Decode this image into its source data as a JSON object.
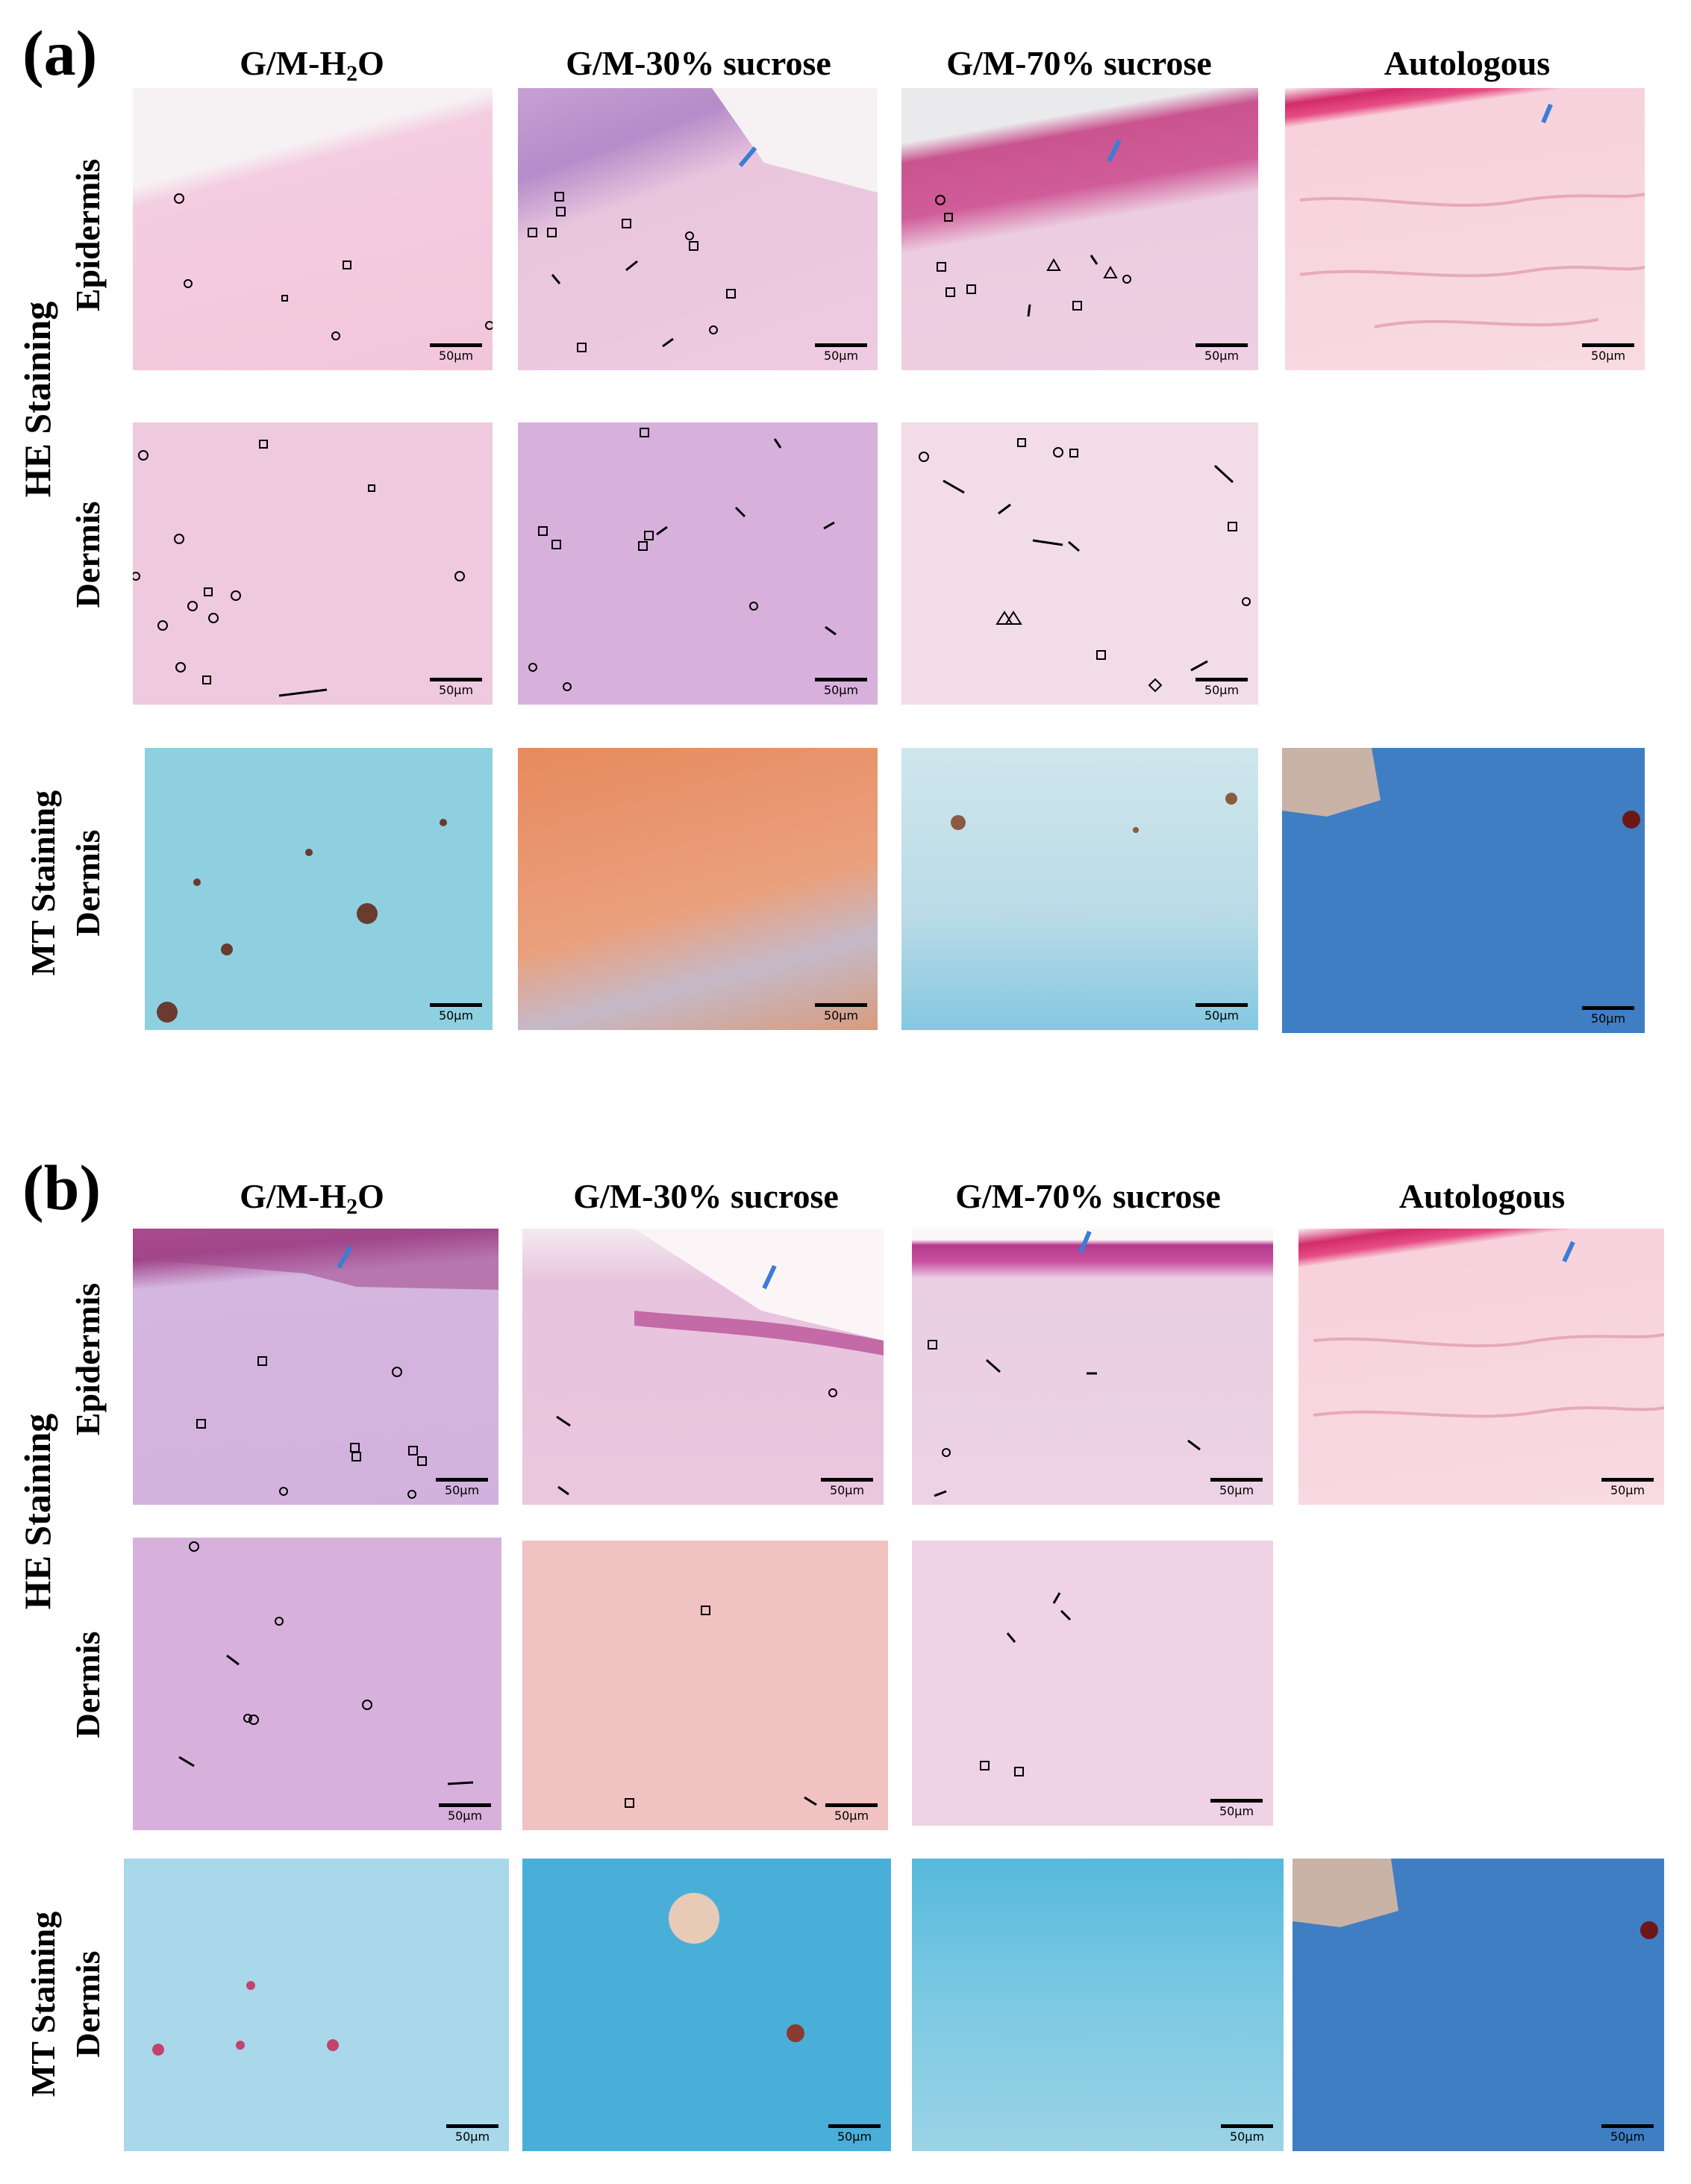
{
  "panels": [
    {
      "letter": "(a)",
      "columns": [
        "G/M-H",
        "G/M-30% sucrose",
        "G/M-70% sucrose",
        "Autologous"
      ],
      "col1_sub": "2",
      "col1_tail": "O",
      "row_group_he": "HE Staining",
      "row_epidermis": "Epidermis",
      "row_dermis": "Dermis",
      "row_group_mt": "MT Staining",
      "row_mt_dermis": "Dermis",
      "scale_label": "50μm"
    },
    {
      "letter": "(b)",
      "columns": [
        "G/M-H",
        "G/M-30% sucrose",
        "G/M-70% sucrose",
        "Autologous"
      ],
      "col1_sub": "2",
      "col1_tail": "O",
      "row_group_he": "HE Staining",
      "row_epidermis": "Epidermis",
      "row_dermis": "Dermis",
      "row_group_mt": "MT Staining",
      "row_mt_dermis": "Dermis",
      "scale_label": "50μm"
    }
  ],
  "colors": {
    "he_pink": "#f1c3d6",
    "epidermis_magenta": "#c04b8a",
    "mt_blue": "#3f7ec3",
    "mt_cyan": "#8fd0e0",
    "mt_red": "#e5976f",
    "annotation_blue_arrow": "#3a7dd6"
  },
  "image_tiles": [
    "he-epidermis",
    "he-dermis",
    "mt-dermis"
  ]
}
